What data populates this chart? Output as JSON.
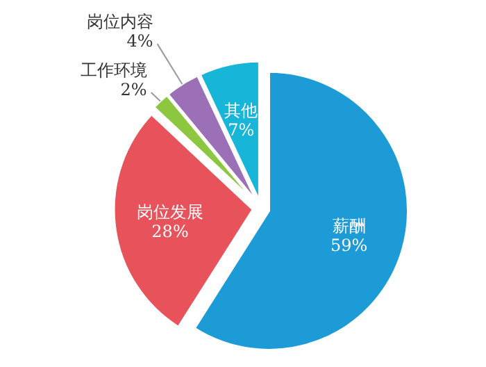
{
  "chart_data": {
    "type": "pie",
    "categories": [
      "薪酬",
      "岗位发展",
      "工作环境",
      "岗位内容",
      "其他"
    ],
    "values": [
      59,
      28,
      2,
      4,
      7
    ],
    "value_labels": [
      "59%",
      "28%",
      "2%",
      "4%",
      "7%"
    ],
    "colors": [
      "#1d9bd7",
      "#e8525a",
      "#8dc63f",
      "#9b70b6",
      "#17b6d8"
    ]
  }
}
